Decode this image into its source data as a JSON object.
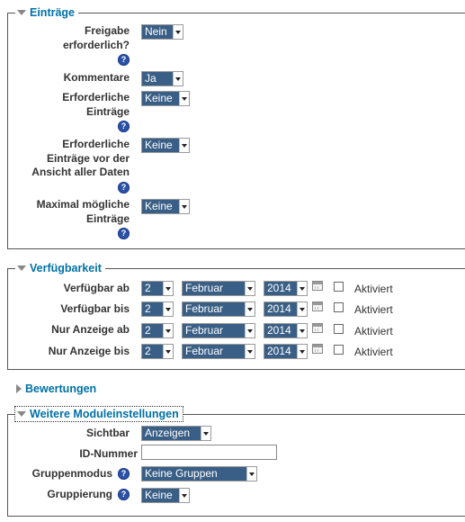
{
  "sections": {
    "eintraege": {
      "title": "Einträge",
      "freigabe": {
        "label_line1": "Freigabe",
        "label_line2": "erforderlich?",
        "value": "Nein"
      },
      "kommentare": {
        "label": "Kommentare",
        "value": "Ja"
      },
      "erforderliche": {
        "label_line1": "Erforderliche",
        "label_line2": "Einträge",
        "value": "Keine"
      },
      "erforderliche_ansicht": {
        "label_line1": "Erforderliche",
        "label_line2": "Einträge vor der",
        "label_line3": "Ansicht aller Daten",
        "value": "Keine"
      },
      "maximal": {
        "label_line1": "Maximal mögliche",
        "label_line2": "Einträge",
        "value": "Keine"
      }
    },
    "verfuegbarkeit": {
      "title": "Verfügbarkeit",
      "rows": [
        {
          "label": "Verfügbar ab",
          "day": "2",
          "month": "Februar",
          "year": "2014",
          "enable_label": "Aktiviert"
        },
        {
          "label": "Verfügbar bis",
          "day": "2",
          "month": "Februar",
          "year": "2014",
          "enable_label": "Aktiviert"
        },
        {
          "label": "Nur Anzeige ab",
          "day": "2",
          "month": "Februar",
          "year": "2014",
          "enable_label": "Aktiviert"
        },
        {
          "label": "Nur Anzeige bis",
          "day": "2",
          "month": "Februar",
          "year": "2014",
          "enable_label": "Aktiviert"
        }
      ]
    },
    "bewertungen": {
      "title": "Bewertungen"
    },
    "weitere": {
      "title": "Weitere Moduleinstellungen",
      "sichtbar": {
        "label": "Sichtbar",
        "value": "Anzeigen"
      },
      "id_nummer": {
        "label": "ID-Nummer",
        "value": ""
      },
      "gruppenmodus": {
        "label": "Gruppenmodus",
        "value": "Keine Gruppen"
      },
      "gruppierung": {
        "label": "Gruppierung",
        "value": "Keine"
      }
    }
  },
  "help_glyph": "?",
  "icons": {
    "help": "help-icon",
    "calendar": "calendar-icon",
    "collapse": "triangle-down-icon",
    "expand": "triangle-right-icon"
  }
}
